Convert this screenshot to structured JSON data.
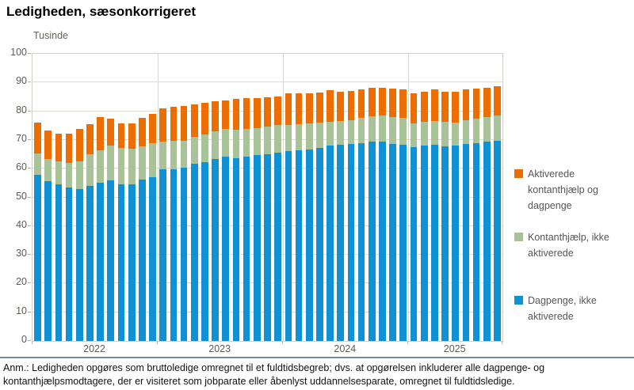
{
  "header": {
    "title": "Ledigheden, sæsonkorrigeret"
  },
  "chart_data": {
    "type": "bar",
    "stacked": true,
    "title": "Ledigheden, sæsonkorrigeret",
    "unit_label": "Tusinde",
    "xlabel": "",
    "ylabel": "Tusinde",
    "ylim": [
      0,
      100
    ],
    "yticks": [
      0,
      10,
      20,
      30,
      40,
      50,
      60,
      70,
      80,
      90,
      100
    ],
    "grid": true,
    "legend_position": "right",
    "year_groups": [
      {
        "label": "2022",
        "bars": 12
      },
      {
        "label": "2023",
        "bars": 12
      },
      {
        "label": "2024",
        "bars": 12
      },
      {
        "label": "2025",
        "bars": 9
      }
    ],
    "series": [
      {
        "name": "Dagpenge, ikke aktiverede",
        "color": "#0e91d5",
        "values": [
          57.9,
          55.6,
          54.5,
          53.5,
          52.8,
          54.0,
          55.1,
          55.8,
          54.6,
          54.6,
          56.2,
          57.1,
          59.7,
          59.9,
          60.4,
          61.7,
          62.3,
          63.4,
          64.1,
          63.6,
          64.3,
          64.7,
          65.0,
          65.7,
          66.1,
          66.3,
          66.8,
          67.3,
          68.0,
          68.2,
          68.6,
          68.9,
          69.5,
          69.5,
          68.6,
          68.2,
          67.5,
          68.0,
          68.2,
          67.7,
          68.0,
          68.6,
          68.9,
          69.3,
          69.8
        ]
      },
      {
        "name": "Kontanthjælp, ikke aktiverede",
        "color": "#a9c297",
        "values": [
          7.5,
          7.8,
          8.0,
          8.5,
          9.7,
          11.0,
          11.2,
          12.2,
          12.6,
          12.3,
          11.5,
          11.8,
          9.6,
          9.9,
          9.4,
          9.5,
          9.6,
          9.6,
          9.6,
          9.9,
          9.6,
          9.5,
          9.6,
          9.4,
          9.2,
          9.2,
          9.0,
          8.7,
          8.2,
          8.3,
          8.3,
          8.7,
          8.8,
          9.0,
          9.4,
          9.6,
          8.3,
          8.2,
          8.3,
          8.5,
          8.0,
          8.3,
          8.5,
          8.7,
          8.7
        ]
      },
      {
        "name": "Aktiverede kontanthjælp og dagpenge",
        "color": "#ec6e00",
        "values": [
          10.6,
          9.9,
          9.6,
          10.1,
          11.4,
          10.5,
          11.7,
          9.3,
          8.7,
          9.0,
          9.9,
          10.2,
          11.8,
          11.7,
          11.9,
          11.2,
          10.9,
          10.4,
          10.0,
          10.8,
          10.6,
          10.5,
          10.3,
          10.0,
          11.0,
          10.6,
          10.5,
          10.6,
          11.0,
          10.3,
          10.1,
          10.1,
          9.9,
          9.7,
          10.0,
          9.7,
          10.5,
          10.7,
          11.0,
          10.6,
          10.8,
          10.6,
          10.5,
          10.2,
          10.1
        ]
      }
    ],
    "legend": [
      {
        "label": "Aktiverede kontanthjælp og dagpenge",
        "color": "#ec6e00"
      },
      {
        "label": "Kontanthjælp, ikke aktiverede",
        "color": "#a9c297"
      },
      {
        "label": "Dagpenge, ikke aktiverede",
        "color": "#0e91d5"
      }
    ]
  },
  "note": "Anm.: Ledigheden opgøres som bruttoledige omregnet til et fuldtidsbegreb; dvs. at opgørelsen inkluderer alle dagpenge- og kontanthjælpsmodtagere, der er visiteret som jobparate eller åbenlyst uddannelsesparate, omregnet til fuldtidsledige."
}
